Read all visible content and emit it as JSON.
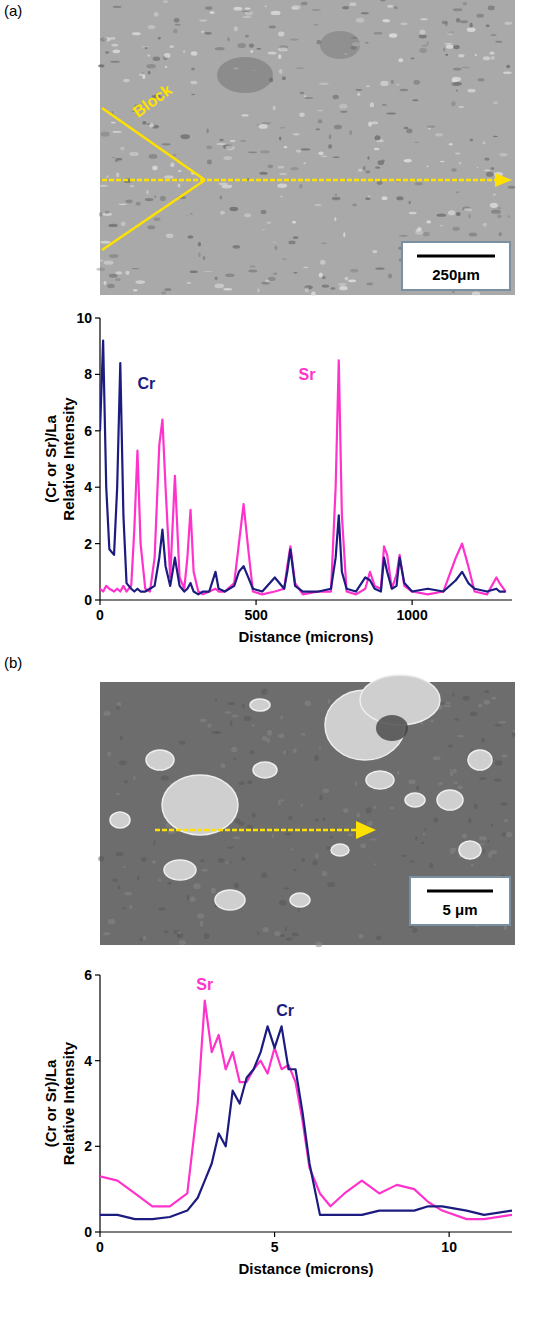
{
  "chart_data": [
    {
      "type": "line",
      "label": "(a)",
      "annotations": [
        "Block",
        "250μm"
      ],
      "xlabel": "Distance (microns)",
      "ylabel": [
        "(Cr or Sr)/La",
        "Relative Intensity"
      ],
      "x": [
        0,
        10,
        20,
        30,
        45,
        55,
        65,
        75,
        85,
        100,
        110,
        120,
        130,
        145,
        160,
        175,
        190,
        200,
        210,
        225,
        240,
        255,
        270,
        280,
        290,
        300,
        315,
        330,
        350,
        370,
        380,
        400,
        430,
        445,
        460,
        475,
        490,
        520,
        560,
        590,
        600,
        610,
        625,
        650,
        700,
        740,
        755,
        765,
        775,
        790,
        820,
        850,
        865,
        880,
        900,
        910,
        920,
        935,
        950,
        960,
        975,
        1000,
        1050,
        1100,
        1140,
        1160,
        1180,
        1200,
        1240,
        1270,
        1280,
        1300
      ],
      "series": [
        {
          "name": "Cr",
          "color": "#1c1c80",
          "values": [
            6.0,
            9.2,
            4.0,
            1.8,
            1.6,
            4.0,
            8.4,
            3.0,
            0.6,
            0.4,
            0.3,
            0.4,
            0.3,
            0.3,
            0.4,
            0.5,
            1.5,
            2.5,
            1.2,
            0.5,
            1.5,
            0.5,
            0.3,
            0.4,
            0.6,
            0.3,
            0.2,
            0.3,
            0.3,
            1.0,
            0.4,
            0.3,
            0.5,
            1.0,
            1.2,
            0.8,
            0.4,
            0.3,
            0.8,
            0.4,
            1.0,
            1.8,
            0.5,
            0.3,
            0.3,
            0.4,
            1.5,
            3.0,
            1.0,
            0.4,
            0.3,
            0.8,
            0.7,
            0.4,
            0.3,
            1.5,
            1.0,
            0.4,
            0.5,
            1.5,
            0.6,
            0.3,
            0.4,
            0.3,
            0.7,
            1.0,
            0.6,
            0.4,
            0.3,
            0.4,
            0.3,
            0.3
          ]
        },
        {
          "name": "Sr",
          "color": "#ff33cc",
          "values": [
            0.4,
            0.3,
            0.5,
            0.4,
            0.3,
            0.4,
            0.3,
            0.5,
            0.3,
            0.5,
            2.5,
            5.3,
            2.0,
            0.4,
            0.3,
            1.5,
            5.5,
            6.4,
            4.0,
            0.8,
            4.4,
            0.8,
            0.4,
            1.5,
            3.2,
            1.0,
            0.3,
            0.2,
            0.3,
            0.4,
            0.3,
            0.3,
            0.6,
            2.0,
            3.4,
            1.8,
            0.3,
            0.2,
            0.3,
            0.4,
            1.2,
            1.9,
            0.6,
            0.2,
            0.3,
            0.3,
            4.0,
            8.5,
            3.0,
            0.3,
            0.2,
            0.4,
            1.0,
            0.5,
            0.4,
            1.9,
            1.6,
            0.4,
            0.9,
            1.6,
            0.5,
            0.3,
            0.2,
            0.3,
            1.5,
            2.0,
            1.2,
            0.3,
            0.2,
            0.8,
            0.6,
            0.3
          ]
        }
      ],
      "xlim": [
        0,
        1320
      ],
      "ylim": [
        0,
        10
      ],
      "xticks": [
        0,
        500,
        1000
      ],
      "yticks": [
        0,
        2,
        4,
        6,
        8,
        10
      ],
      "grid": false
    },
    {
      "type": "line",
      "label": "(b)",
      "annotations": [
        "5 μm"
      ],
      "xlabel": "Distance (microns)",
      "ylabel": [
        "(Cr or Sr)/La",
        "Relative Intensity"
      ],
      "x": [
        0,
        0.5,
        1,
        1.5,
        2,
        2.5,
        2.8,
        3.0,
        3.2,
        3.4,
        3.6,
        3.8,
        4.0,
        4.2,
        4.4,
        4.6,
        4.8,
        5.0,
        5.2,
        5.4,
        5.6,
        5.8,
        6.0,
        6.3,
        6.6,
        7,
        7.5,
        8,
        8.5,
        9,
        9.4,
        9.8,
        10.5,
        11,
        11.8
      ],
      "series": [
        {
          "name": "Cr",
          "color": "#1c1c80",
          "values": [
            0.4,
            0.4,
            0.3,
            0.3,
            0.35,
            0.5,
            0.8,
            1.2,
            1.6,
            2.3,
            2.0,
            3.3,
            3.0,
            3.6,
            3.8,
            4.2,
            4.8,
            4.3,
            4.8,
            3.8,
            3.8,
            2.8,
            1.6,
            0.4,
            0.4,
            0.4,
            0.4,
            0.5,
            0.5,
            0.5,
            0.6,
            0.6,
            0.5,
            0.4,
            0.5
          ]
        },
        {
          "name": "Sr",
          "color": "#ff33cc",
          "values": [
            1.3,
            1.2,
            0.9,
            0.6,
            0.6,
            0.9,
            3.0,
            5.4,
            4.2,
            4.6,
            3.8,
            4.2,
            3.5,
            3.5,
            3.8,
            4.0,
            3.7,
            4.3,
            3.8,
            3.9,
            3.5,
            2.6,
            1.5,
            0.9,
            0.6,
            0.9,
            1.2,
            0.9,
            1.1,
            1.0,
            0.7,
            0.5,
            0.3,
            0.3,
            0.4
          ]
        }
      ],
      "xlim": [
        0,
        11.8
      ],
      "ylim": [
        0,
        6
      ],
      "xticks": [
        0,
        5,
        10
      ],
      "yticks": [
        0,
        2,
        4,
        6
      ],
      "grid": false
    }
  ]
}
